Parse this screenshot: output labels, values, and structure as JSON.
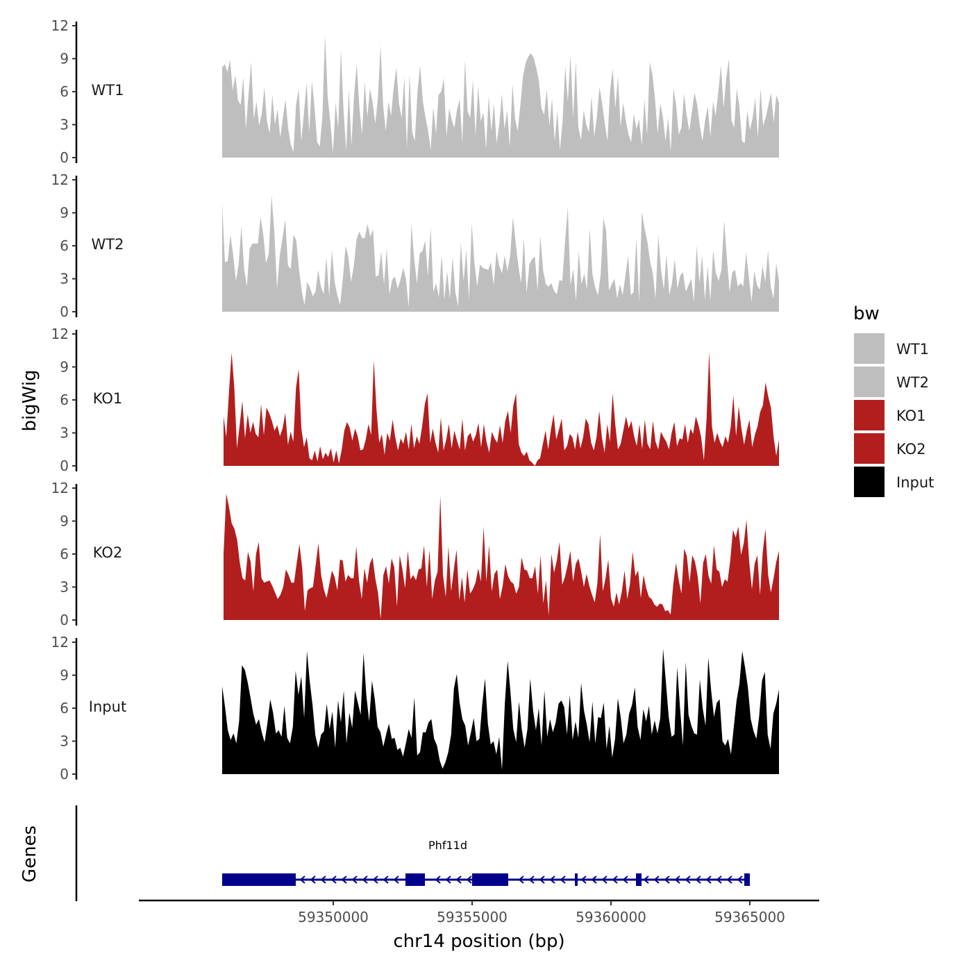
{
  "chart_data": {
    "type": "area",
    "xlabel": "chr14 position (bp)",
    "ylabel": "bigWig",
    "genes_label": "Genes",
    "chromosome": "chr14",
    "xlim": [
      59343000,
      59367500
    ],
    "ylim": [
      0,
      12
    ],
    "x_ticks": [
      59350000,
      59355000,
      59360000,
      59365000
    ],
    "y_ticks": [
      0,
      3,
      6,
      9,
      12
    ],
    "legend": {
      "title": "bw",
      "entries": [
        {
          "name": "WT1",
          "color": "#bebebe"
        },
        {
          "name": "WT2",
          "color": "#bebebe"
        },
        {
          "name": "KO1",
          "color": "#b21e1e"
        },
        {
          "name": "KO2",
          "color": "#b21e1e"
        },
        {
          "name": "Input",
          "color": "#000000"
        }
      ]
    },
    "series": [
      {
        "name": "WT1",
        "color": "#bebebe",
        "x_start": 59346000,
        "x_end": 59366050,
        "values": [
          8.2,
          8.5,
          7.8,
          8.9,
          6.1,
          7.5,
          5.2,
          4.8,
          7.3,
          2.6,
          5.8,
          8.7,
          3.5,
          5.1,
          2.9,
          4.0,
          6.4,
          3.3,
          2.2,
          5.7,
          3.0,
          4.4,
          1.8,
          3.6,
          5.3,
          2.7,
          1.2,
          0.5,
          4.8,
          6.2,
          1.5,
          4.1,
          6.8,
          2.3,
          7.0,
          4.6,
          1.4,
          1.0,
          3.8,
          11.2,
          5.5,
          3.2,
          0.4,
          5.0,
          2.7,
          9.8,
          4.3,
          0.6,
          6.2,
          1.1,
          5.7,
          8.5,
          4.6,
          2.1,
          6.9,
          3.7,
          6.3,
          5.0,
          3.1,
          5.4,
          10.2,
          4.7,
          2.4,
          5.1,
          3.8,
          6.4,
          8.2,
          4.9,
          3.6,
          7.3,
          0.9,
          7.6,
          2.3,
          1.5,
          6.0,
          8.4,
          5.2,
          3.7,
          2.5,
          0.7,
          4.6,
          2.2,
          5.7,
          6.0,
          7.2,
          1.9,
          4.5,
          3.4,
          2.7,
          4.4,
          5.3,
          1.3,
          8.9,
          4.2,
          3.6,
          7.1,
          2.0,
          6.5,
          3.3,
          4.1,
          0.8,
          5.6,
          2.4,
          4.9,
          1.3,
          3.0,
          5.8,
          2.6,
          4.3,
          1.0,
          6.7,
          3.5,
          2.4,
          4.8,
          7.4,
          8.6,
          9.2,
          9.5,
          9.1,
          8.2,
          7.0,
          4.5,
          3.9,
          6.2,
          2.9,
          5.4,
          1.5,
          4.2,
          0.7,
          3.3,
          8.3,
          5.1,
          9.4,
          3.6,
          8.8,
          2.7,
          1.6,
          4.3,
          3.0,
          2.3,
          5.6,
          1.9,
          3.7,
          6.4,
          4.9,
          3.1,
          1.5,
          6.1,
          8.1,
          4.5,
          7.4,
          2.8,
          5.0,
          3.3,
          2.1,
          1.4,
          4.0,
          2.6,
          3.5,
          1.1,
          5.3,
          2.0,
          8.7,
          7.6,
          5.4,
          2.2,
          4.9,
          3.7,
          1.5,
          3.6,
          0.6,
          6.3,
          4.8,
          2.1,
          2.7,
          5.8,
          3.9,
          2.4,
          4.2,
          5.9,
          4.8,
          2.9,
          1.5,
          3.4,
          4.7,
          1.9,
          5.1,
          3.8,
          6.0,
          8.4,
          4.5,
          7.2,
          9.0,
          3.4,
          2.7,
          6.3,
          4.6,
          1.5,
          1.3,
          4.3,
          2.5,
          3.6,
          5.4,
          1.8,
          6.3,
          2.9,
          3.7,
          4.8,
          5.9,
          3.2,
          5.7,
          5.0
        ]
      },
      {
        "name": "WT2",
        "color": "#bebebe",
        "x_start": 59346000,
        "x_end": 59366050,
        "values": [
          9.8,
          4.5,
          4.6,
          7.0,
          5.2,
          2.8,
          4.3,
          7.8,
          3.9,
          2.3,
          5.7,
          6.2,
          6.2,
          6.2,
          8.6,
          7.0,
          4.4,
          5.3,
          10.6,
          7.3,
          2.1,
          5.1,
          6.7,
          8.4,
          4.2,
          3.9,
          7.0,
          6.5,
          3.9,
          1.9,
          0.6,
          2.7,
          2.2,
          1.4,
          1.8,
          3.8,
          2.3,
          1.6,
          5.0,
          1.4,
          5.6,
          2.7,
          1.5,
          0.6,
          3.0,
          6.0,
          5.0,
          2.7,
          4.2,
          6.6,
          7.3,
          6.7,
          6.7,
          8.0,
          6.8,
          7.5,
          3.2,
          3.3,
          5.5,
          2.5,
          5.8,
          1.6,
          2.9,
          3.2,
          2.1,
          2.9,
          4.0,
          3.0,
          0.4,
          8.0,
          4.8,
          2.6,
          5.3,
          5.5,
          6.5,
          3.2,
          7.7,
          1.8,
          2.6,
          1.3,
          5.2,
          1.1,
          3.7,
          1.2,
          5.0,
          1.8,
          0.5,
          6.3,
          2.8,
          5.6,
          1.1,
          8.0,
          4.3,
          2.3,
          4.3,
          4.0,
          3.9,
          3.8,
          4.5,
          2.4,
          5.5,
          4.2,
          3.5,
          5.1,
          3.7,
          5.1,
          8.6,
          6.3,
          4.1,
          2.6,
          6.7,
          1.7,
          4.3,
          4.8,
          5.0,
          1.9,
          6.9,
          3.8,
          2.5,
          2.3,
          2.6,
          1.9,
          1.6,
          2.9,
          2.8,
          6.3,
          9.5,
          2.4,
          3.9,
          1.0,
          5.5,
          2.5,
          3.5,
          2.0,
          7.6,
          3.4,
          2.2,
          1.5,
          3.4,
          8.5,
          7.3,
          1.9,
          2.5,
          3.0,
          1.2,
          2.5,
          1.5,
          3.3,
          5.1,
          1.5,
          1.8,
          6.7,
          0.9,
          9.1,
          7.6,
          6.4,
          4.6,
          3.5,
          1.2,
          7.0,
          3.8,
          2.0,
          5.2,
          1.5,
          2.6,
          4.8,
          2.1,
          3.3,
          3.6,
          1.8,
          2.4,
          3.0,
          0.9,
          6.0,
          2.6,
          5.1,
          1.1,
          4.1,
          1.0,
          5.6,
          3.5,
          2.8,
          3.8,
          8.3,
          4.9,
          1.8,
          3.6,
          3.8,
          2.3,
          2.6,
          2.3,
          5.4,
          3.2,
          0.9,
          3.7,
          2.4,
          2.0,
          4.2,
          2.7,
          5.6,
          2.3,
          1.2,
          4.4,
          2.8
        ]
      },
      {
        "name": "KO1",
        "color": "#b21e1e",
        "x_start": 59346050,
        "x_end": 59366050,
        "values": [
          4.5,
          2.6,
          6.6,
          10.3,
          7.1,
          1.6,
          3.7,
          5.9,
          2.5,
          4.7,
          3.0,
          4.0,
          2.9,
          2.6,
          5.6,
          2.8,
          5.3,
          4.8,
          4.1,
          3.2,
          3.7,
          2.7,
          3.4,
          4.8,
          1.9,
          3.1,
          2.2,
          7.1,
          8.8,
          3.4,
          1.7,
          2.6,
          0.7,
          0.5,
          1.4,
          0.4,
          1.8,
          0.6,
          1.2,
          0.8,
          1.6,
          0.3,
          1.4,
          0.2,
          1.4,
          3.2,
          4.0,
          3.5,
          2.3,
          3.4,
          2.7,
          1.4,
          1.5,
          2.4,
          3.8,
          2.8,
          9.6,
          5.1,
          2.1,
          2.9,
          1.0,
          3.0,
          2.3,
          4.2,
          2.6,
          1.4,
          2.5,
          2.0,
          3.1,
          1.5,
          3.8,
          1.6,
          2.7,
          2.0,
          3.6,
          5.6,
          6.6,
          2.1,
          3.4,
          2.1,
          1.2,
          4.4,
          1.4,
          2.4,
          3.8,
          1.6,
          3.2,
          2.3,
          1.5,
          4.3,
          1.4,
          2.7,
          3.0,
          2.2,
          2.8,
          3.9,
          1.7,
          3.8,
          2.2,
          1.2,
          3.1,
          2.5,
          2.1,
          3.7,
          2.1,
          4.1,
          5.0,
          3.0,
          5.5,
          6.6,
          2.0,
          1.2,
          0.9,
          1.3,
          0.5,
          0.3,
          0.0,
          0.5,
          0.7,
          2.0,
          3.2,
          1.5,
          3.3,
          4.7,
          2.4,
          3.3,
          4.3,
          1.4,
          1.8,
          2.9,
          2.6,
          1.5,
          3.1,
          1.6,
          2.6,
          4.3,
          3.8,
          2.1,
          1.4,
          2.6,
          5.0,
          2.6,
          1.2,
          3.8,
          2.2,
          6.6,
          3.7,
          1.5,
          2.0,
          3.2,
          4.5,
          3.4,
          4.1,
          2.7,
          1.8,
          3.8,
          1.5,
          4.2,
          2.0,
          1.5,
          4.1,
          2.2,
          1.5,
          3.1,
          2.6,
          2.2,
          1.5,
          3.0,
          4.0,
          1.8,
          2.5,
          2.4,
          3.8,
          2.1,
          3.4,
          2.9,
          4.5,
          3.7,
          2.6,
          0.5,
          4.3,
          10.4,
          3.6,
          2.1,
          3.0,
          2.2,
          1.7,
          2.7,
          2.1,
          3.5,
          6.4,
          2.7,
          5.4,
          3.4,
          1.9,
          3.2,
          4.2,
          1.7,
          2.8,
          3.6,
          4.9,
          5.5,
          7.6,
          6.3,
          5.3,
          2.6,
          0.9,
          2.4
        ]
      },
      {
        "name": "KO2",
        "color": "#b21e1e",
        "x_start": 59346050,
        "x_end": 59366050,
        "values": [
          6.0,
          11.5,
          10.3,
          8.8,
          8.3,
          7.3,
          5.2,
          3.8,
          3.6,
          6.2,
          5.3,
          2.6,
          6.0,
          7.1,
          3.8,
          3.4,
          3.5,
          3.6,
          3.1,
          2.5,
          1.9,
          2.3,
          3.0,
          4.6,
          4.1,
          3.4,
          3.4,
          5.2,
          6.9,
          4.8,
          0.8,
          2.7,
          2.9,
          3.0,
          5.0,
          7.0,
          4.1,
          2.8,
          2.0,
          3.2,
          4.5,
          3.9,
          2.7,
          5.5,
          5.4,
          3.5,
          4.1,
          3.8,
          3.8,
          6.7,
          3.6,
          1.9,
          4.7,
          3.4,
          5.1,
          5.7,
          3.8,
          2.5,
          0.1,
          4.1,
          4.9,
          3.3,
          5.6,
          4.8,
          1.2,
          5.9,
          4.6,
          2.9,
          6.3,
          3.7,
          4.1,
          3.6,
          4.6,
          4.7,
          6.8,
          3.0,
          6.4,
          1.9,
          3.6,
          4.4,
          11.3,
          4.1,
          2.1,
          6.7,
          2.6,
          4.6,
          6.4,
          1.8,
          3.9,
          1.6,
          4.6,
          2.4,
          2.8,
          3.4,
          4.7,
          3.5,
          8.5,
          3.5,
          6.8,
          2.6,
          4.2,
          4.6,
          1.9,
          3.1,
          5.1,
          4.0,
          3.5,
          3.3,
          2.4,
          3.0,
          5.7,
          4.6,
          4.5,
          3.8,
          3.8,
          4.9,
          2.4,
          5.9,
          1.5,
          3.6,
          0.4,
          6.0,
          4.3,
          5.4,
          7.1,
          3.2,
          3.9,
          5.0,
          6.3,
          3.5,
          5.1,
          5.6,
          4.4,
          3.0,
          4.2,
          3.1,
          2.3,
          1.6,
          3.4,
          7.8,
          2.6,
          3.8,
          5.5,
          2.0,
          1.2,
          2.5,
          1.4,
          2.6,
          4.5,
          1.9,
          3.3,
          6.2,
          4.0,
          4.5,
          2.0,
          4.1,
          2.9,
          2.1,
          1.9,
          1.4,
          1.2,
          1.5,
          1.4,
          0.8,
          0.9,
          0.5,
          3.3,
          5.2,
          3.6,
          2.4,
          6.5,
          5.8,
          3.4,
          5.9,
          5.3,
          4.0,
          1.5,
          5.2,
          6.0,
          4.0,
          3.3,
          6.8,
          4.6,
          4.4,
          3.0,
          3.7,
          3.5,
          5.4,
          8.2,
          7.5,
          8.5,
          5.9,
          7.0,
          9.1,
          5.3,
          2.8,
          5.1,
          5.9,
          2.3,
          6.2,
          8.3,
          4.1,
          2.5,
          3.8,
          5.3,
          6.3
        ]
      },
      {
        "name": "Input",
        "color": "#000000",
        "x_start": 59346000,
        "x_end": 59366050,
        "values": [
          8.0,
          6.1,
          4.0,
          3.1,
          3.7,
          2.8,
          4.8,
          9.9,
          9.5,
          8.4,
          7.0,
          5.5,
          4.5,
          5.0,
          3.8,
          2.9,
          4.6,
          6.8,
          5.6,
          3.7,
          4.0,
          3.4,
          6.2,
          3.3,
          2.8,
          4.3,
          9.4,
          7.2,
          8.9,
          5.1,
          11.2,
          8.4,
          6.2,
          3.5,
          2.4,
          3.6,
          3.9,
          6.4,
          4.1,
          5.7,
          2.4,
          6.7,
          4.7,
          7.6,
          2.8,
          5.6,
          4.2,
          7.6,
          6.5,
          5.4,
          11.0,
          7.2,
          4.8,
          8.5,
          6.8,
          4.3,
          3.8,
          2.5,
          3.6,
          4.6,
          3.2,
          3.3,
          2.2,
          2.4,
          1.6,
          2.8,
          4.1,
          3.3,
          7.0,
          1.7,
          2.0,
          3.8,
          3.8,
          4.7,
          5.0,
          3.2,
          2.6,
          1.2,
          0.5,
          1.1,
          2.0,
          3.6,
          7.8,
          9.1,
          6.5,
          5.0,
          4.4,
          2.6,
          3.8,
          5.1,
          3.0,
          3.2,
          6.3,
          8.7,
          4.6,
          2.7,
          3.0,
          1.8,
          3.4,
          0.4,
          6.4,
          10.3,
          7.5,
          4.1,
          2.9,
          6.6,
          4.1,
          2.4,
          4.1,
          8.7,
          5.8,
          4.0,
          6.0,
          2.6,
          7.6,
          3.4,
          5.0,
          3.8,
          4.7,
          6.4,
          6.7,
          6.1,
          3.6,
          7.2,
          3.1,
          4.8,
          3.3,
          8.3,
          5.8,
          4.5,
          2.9,
          6.6,
          2.8,
          5.2,
          5.1,
          6.5,
          2.3,
          4.4,
          1.5,
          3.2,
          6.9,
          5.2,
          2.8,
          3.6,
          5.5,
          6.3,
          7.9,
          4.3,
          3.1,
          5.9,
          4.8,
          6.2,
          3.6,
          4.9,
          3.7,
          5.1,
          11.4,
          8.3,
          5.2,
          3.4,
          3.6,
          9.7,
          6.0,
          2.6,
          10.2,
          5.4,
          4.4,
          3.7,
          3.6,
          8.6,
          6.0,
          4.4,
          10.6,
          7.6,
          5.2,
          6.5,
          6.8,
          3.0,
          2.6,
          3.2,
          1.8,
          4.3,
          6.7,
          8.2,
          11.2,
          9.7,
          7.9,
          5.0,
          3.9,
          3.2,
          5.3,
          8.5,
          9.3,
          3.6,
          2.3,
          5.5,
          6.4,
          7.7
        ]
      }
    ],
    "genes": [
      {
        "name": "Phf11d",
        "strand": "-",
        "start": 59346000,
        "end": 59365000,
        "exons": [
          [
            59346000,
            59347700
          ],
          [
            59347700,
            59348650
          ],
          [
            59352600,
            59353300
          ],
          [
            59355000,
            59356300
          ],
          [
            59358700,
            59358800
          ],
          [
            59360900,
            59361100
          ],
          [
            59364800,
            59365000
          ]
        ]
      }
    ]
  }
}
